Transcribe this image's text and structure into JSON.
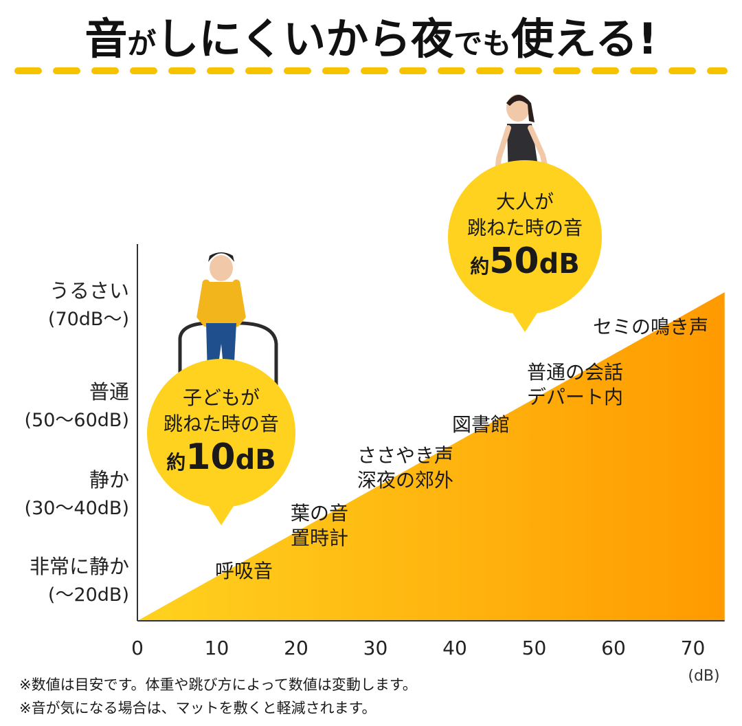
{
  "headline": {
    "parts": [
      "音",
      "が",
      "しにくいから夜",
      "で",
      "も",
      "使える!"
    ]
  },
  "chart_data": {
    "type": "area",
    "x_ticks": [
      0,
      10,
      20,
      30,
      40,
      50,
      60,
      70
    ],
    "x_unit": "(dB)",
    "xlim": [
      0,
      74
    ],
    "series": [
      {
        "x": [
          0,
          74
        ],
        "y": [
          0,
          74
        ]
      }
    ],
    "y_categories": [
      {
        "line1": "非常に静か",
        "line2": "(〜20dB)"
      },
      {
        "line1": "静か",
        "line2": "(30〜40dB)"
      },
      {
        "line1": "普通",
        "line2": "(50〜60dB)"
      },
      {
        "line1": "うるさい",
        "line2": "(70dB〜)"
      }
    ],
    "annotations": [
      {
        "lines": [
          "呼吸音"
        ]
      },
      {
        "lines": [
          "葉の音",
          "置時計"
        ]
      },
      {
        "lines": [
          "ささやき声",
          "深夜の郊外"
        ]
      },
      {
        "lines": [
          "図書館"
        ]
      },
      {
        "lines": [
          "普通の会話",
          "デパート内"
        ]
      },
      {
        "lines": [
          "セミの鳴き声"
        ]
      }
    ],
    "callouts": [
      {
        "lines": [
          "子どもが",
          "跳ねた時の音"
        ],
        "prefix": "約",
        "value": "10",
        "unit": "dB",
        "db": 10
      },
      {
        "lines": [
          "大人が",
          "跳ねた時の音"
        ],
        "prefix": "約",
        "value": "50",
        "unit": "dB",
        "db": 50
      }
    ],
    "colors": {
      "gradient_start": "#ffd21f",
      "gradient_end": "#ff9a00",
      "callout": "#ffd21f",
      "dash": "#f5c300"
    },
    "grid": false
  },
  "footnotes": [
    "※数値は目安です。体重や跳び方によって数値は変動します。",
    "※音が気になる場合は、マットを敷くと軽減されます。"
  ]
}
